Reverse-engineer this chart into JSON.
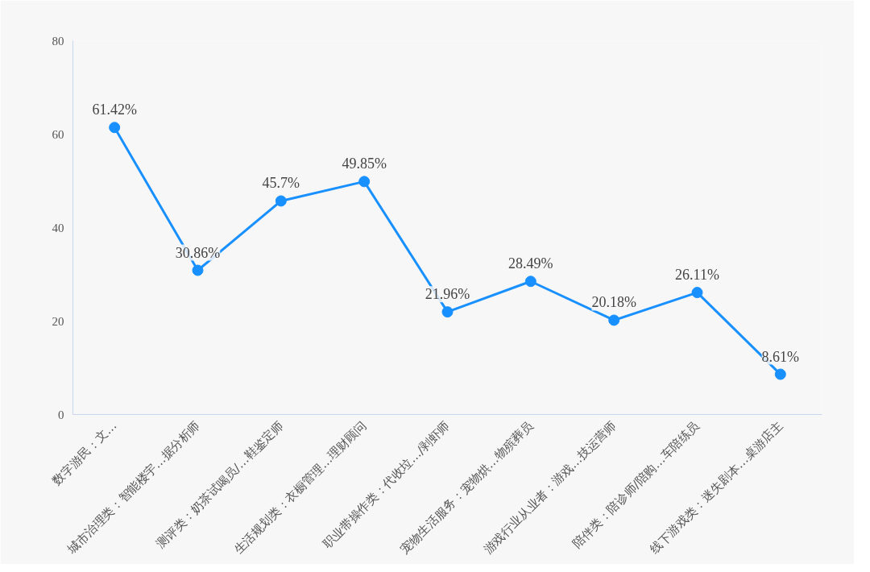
{
  "chart_data": {
    "type": "line",
    "categories": [
      "数字游民：文…",
      "城市治理类：智能楼宇…据分析师",
      "测评类：奶茶试喝员/…鞋鉴定师",
      "生活规划类：衣橱管理…理财顾问",
      "职业带操作类：代收垃…/剥虾师",
      "宠物生活服务：宠物烘…物殡葬员",
      "游戏行业从业者：游戏…技运营师",
      "陪伴类：陪诊师/陪购…车陪练员",
      "线下游戏类：迷失剧本…桌游店主"
    ],
    "series": [
      {
        "color": "#1890ff",
        "values": [
          61.42,
          30.86,
          45.7,
          49.85,
          21.96,
          28.49,
          20.18,
          26.11,
          8.61
        ],
        "value_labels": [
          "61.42%",
          "30.86%",
          "45.7%",
          "49.85%",
          "21.96%",
          "28.49%",
          "20.18%",
          "26.11%",
          "8.61%"
        ]
      }
    ],
    "ylim": [
      0,
      80
    ],
    "yticks": [
      0,
      20,
      40,
      60,
      80
    ],
    "grid": false,
    "marker": "circle",
    "line_style": "solid"
  }
}
